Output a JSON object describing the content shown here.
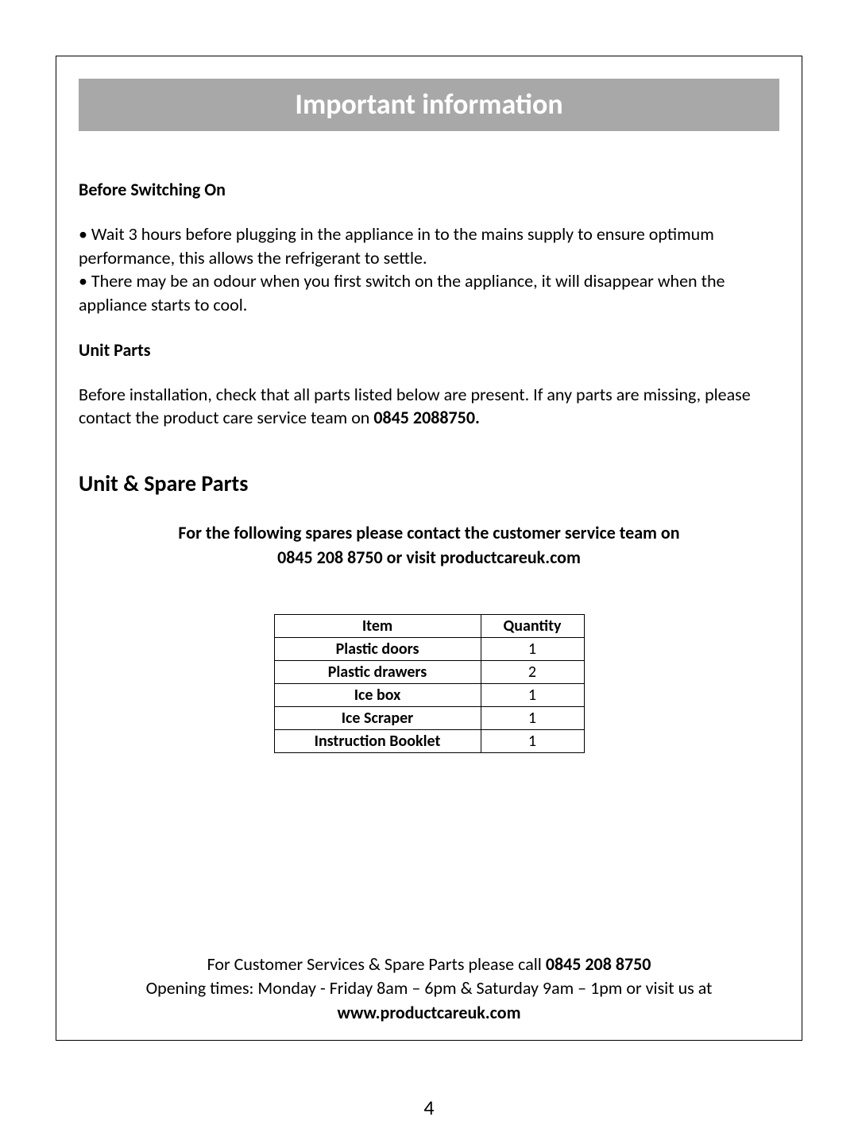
{
  "banner_title": "Important information",
  "section1_heading": "Before Switching On",
  "bullet1": "• Wait 3 hours before plugging in the appliance in to the mains supply to ensure optimum performance, this allows the refrigerant to settle.",
  "bullet2": "• There may be an odour when you first switch on the appliance, it will disappear when the appliance starts to cool.",
  "section2_heading": "Unit Parts",
  "unit_parts_text_pre": "Before installation, check that all parts listed below are present. If any parts are missing, please contact the product care service team on ",
  "unit_parts_phone": "0845 2088750.",
  "unit_spare_heading": "Unit & Spare Parts",
  "spares_line1": "For the following spares please contact the customer service team on",
  "spares_line2": "0845 208 8750 or visit productcareuk.com",
  "table": {
    "headers": {
      "item": "Item",
      "qty": "Quantity"
    },
    "rows": [
      {
        "item": "Plastic doors",
        "qty": "1"
      },
      {
        "item": "Plastic drawers",
        "qty": "2"
      },
      {
        "item": "Ice box",
        "qty": "1"
      },
      {
        "item": "Ice Scraper",
        "qty": "1"
      },
      {
        "item": "Instruction Booklet",
        "qty": "1"
      }
    ]
  },
  "footer": {
    "line1_pre": "For Customer Services & Spare Parts please call ",
    "line1_phone": "0845 208 8750",
    "line2": "Opening times: Monday - Friday  8am – 6pm & Saturday 9am – 1pm or visit us at",
    "line3": "www.productcareuk.com"
  },
  "page_number": "4",
  "colors": {
    "banner_bg": "#a8a8a8",
    "banner_fg": "#ffffff",
    "text": "#000000",
    "border": "#000000",
    "page_bg": "#ffffff"
  }
}
